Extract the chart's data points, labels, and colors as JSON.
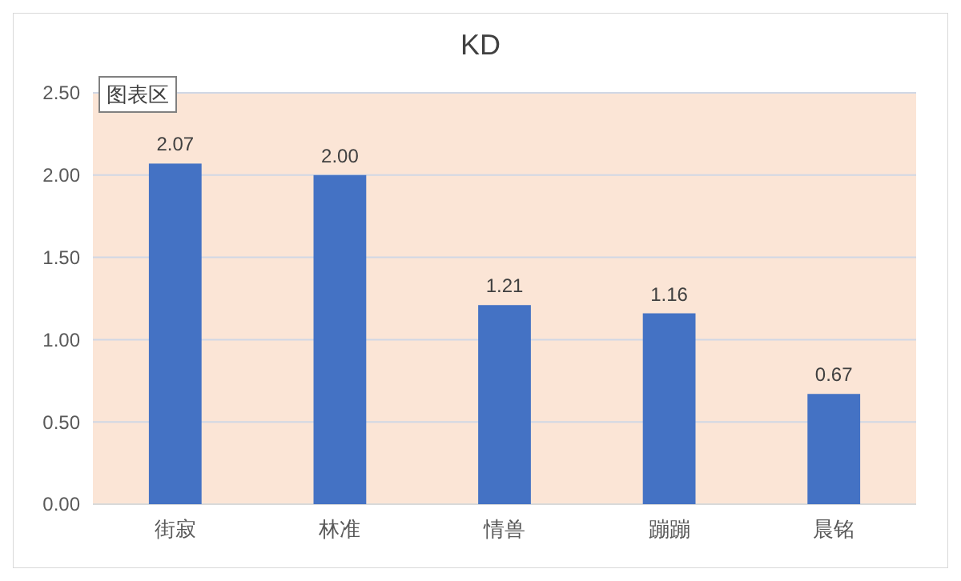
{
  "chart_data": {
    "type": "bar",
    "title": "KD",
    "categories": [
      "街寂",
      "林准",
      "情兽",
      "蹦蹦",
      "晨铭"
    ],
    "values": [
      2.07,
      2.0,
      1.21,
      1.16,
      0.67
    ],
    "color": "#4472c4",
    "ylim": [
      0,
      2.5
    ],
    "yticks": [
      {
        "value": 0,
        "label": "0.00"
      },
      {
        "value": 0.5,
        "label": "0.50"
      },
      {
        "value": 1,
        "label": "1.00"
      },
      {
        "value": 1.5,
        "label": "1.50"
      },
      {
        "value": 2,
        "label": "2.00"
      },
      {
        "value": 2.5,
        "label": "2.50"
      }
    ],
    "value_labels": [
      "2.07",
      "2.00",
      "1.21",
      "1.16",
      "0.67"
    ],
    "grid": "y",
    "annotations": [
      "图表区"
    ]
  }
}
